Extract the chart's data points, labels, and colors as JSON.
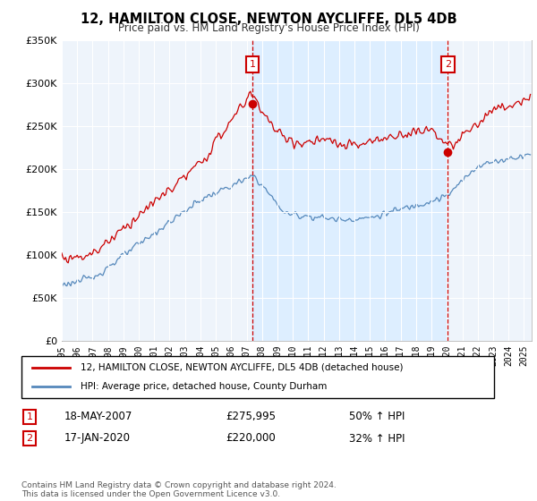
{
  "title": "12, HAMILTON CLOSE, NEWTON AYCLIFFE, DL5 4DB",
  "subtitle": "Price paid vs. HM Land Registry's House Price Index (HPI)",
  "legend_line1": "12, HAMILTON CLOSE, NEWTON AYCLIFFE, DL5 4DB (detached house)",
  "legend_line2": "HPI: Average price, detached house, County Durham",
  "sale1_label": "1",
  "sale1_date": "18-MAY-2007",
  "sale1_price": "£275,995",
  "sale1_hpi": "50% ↑ HPI",
  "sale1_year": 2007.38,
  "sale1_value": 275995,
  "sale2_label": "2",
  "sale2_date": "17-JAN-2020",
  "sale2_price": "£220,000",
  "sale2_hpi": "32% ↑ HPI",
  "sale2_year": 2020.05,
  "sale2_value": 220000,
  "ylabel_max": 350000,
  "xmin": 1995,
  "xmax": 2025.5,
  "footer": "Contains HM Land Registry data © Crown copyright and database right 2024.\nThis data is licensed under the Open Government Licence v3.0.",
  "red_color": "#cc0000",
  "blue_color": "#5588bb",
  "shade_color": "#ddeeff",
  "background_color": "#eef4fb"
}
